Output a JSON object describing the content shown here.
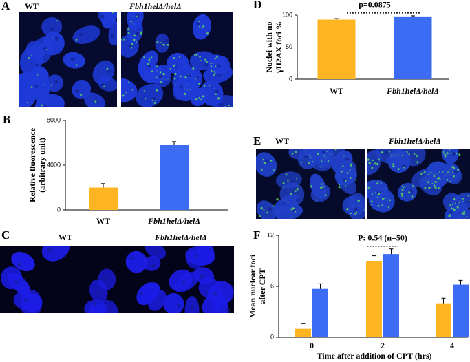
{
  "panels": {
    "A": {
      "letter": "A",
      "labels": [
        "WT",
        "Fbh1helΔ/helΔ"
      ]
    },
    "C": {
      "letter": "C",
      "labels": [
        "WT",
        "Fbh1helΔ/helΔ"
      ]
    },
    "E": {
      "letter": "E",
      "labels": [
        "WT",
        "Fbh1helΔ/helΔ"
      ]
    }
  },
  "chart_data": [
    {
      "type": "bar",
      "letter": "B",
      "ylabel": [
        "Relative fluorescence",
        "(arbitrary unit)"
      ],
      "categories": [
        "WT",
        "Fbh1helΔ/helΔ"
      ],
      "values": [
        2000,
        5800
      ],
      "errors": [
        350,
        300
      ],
      "colors": [
        "#ffb422",
        "#3d6cf4"
      ],
      "ylim": [
        0,
        8000
      ],
      "yticks": [
        0,
        4000,
        8000
      ]
    },
    {
      "type": "bar",
      "letter": "D",
      "ylabel": [
        "Nuclei with no",
        "γH2AX foci %"
      ],
      "categories": [
        "WT",
        "Fbh1helΔ/helΔ"
      ],
      "values": [
        93,
        98
      ],
      "errors": [
        1.5,
        1
      ],
      "colors": [
        "#ffb422",
        "#3d6cf4"
      ],
      "ylim": [
        0,
        100
      ],
      "yticks": [
        0,
        50,
        100
      ],
      "annotation": "p=0.0875"
    },
    {
      "type": "grouped-bar",
      "letter": "F",
      "ylabel": [
        "Mean nuclear foci",
        "after  CPT"
      ],
      "xlabel": "Time after  addition of CPT (hrs)",
      "categories": [
        "0",
        "2",
        "4"
      ],
      "series": [
        {
          "color": "#ffb422",
          "values": [
            1.0,
            9.0,
            4.0
          ],
          "errors": [
            0.6,
            0.6,
            0.6
          ]
        },
        {
          "color": "#3d6cf4",
          "values": [
            5.7,
            9.8,
            6.2
          ],
          "errors": [
            0.6,
            0.6,
            0.5
          ]
        }
      ],
      "ylim": [
        0,
        12
      ],
      "yticks": [
        0,
        6,
        12
      ],
      "annotation": "P: 0.54 (n=50)"
    }
  ]
}
